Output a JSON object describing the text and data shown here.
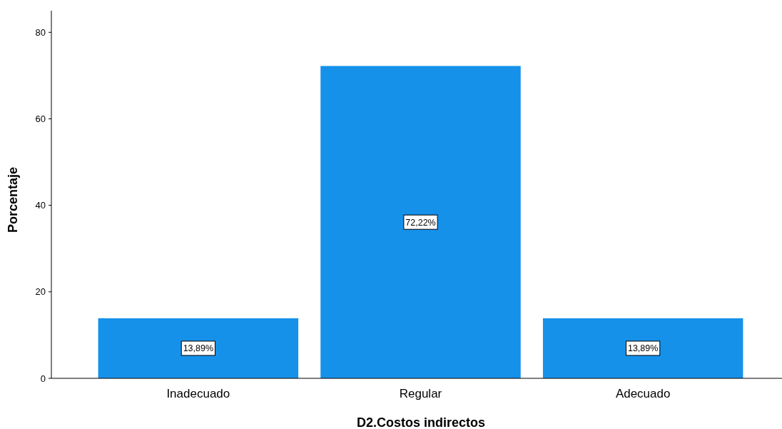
{
  "chart_data": {
    "type": "bar",
    "xlabel": "D2.Costos indirectos",
    "ylabel": "Porcentaje",
    "categories": [
      "Inadecuado",
      "Regular",
      "Adecuado"
    ],
    "values": [
      13.89,
      72.22,
      13.89
    ],
    "value_labels": [
      "13,89%",
      "72,22%",
      "13,89%"
    ],
    "color": "#1591ea",
    "ylim": [
      0,
      85
    ],
    "yticks": [
      0,
      20,
      40,
      60,
      80
    ],
    "grid": false
  }
}
